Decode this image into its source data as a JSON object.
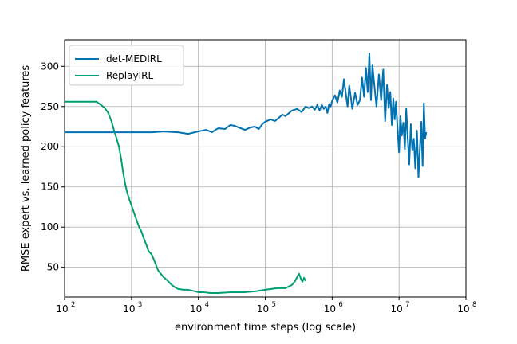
{
  "chart_data": {
    "type": "line",
    "title": "",
    "xlabel": "environment time steps (log scale)",
    "ylabel": "RMSE expert vs. learned policy features",
    "xscale": "log",
    "xlim": [
      100,
      100000000
    ],
    "ylim": [
      13,
      333
    ],
    "grid": true,
    "legend_position": "top-left",
    "xticks": [
      {
        "value": 100,
        "label": "10",
        "exp": "2"
      },
      {
        "value": 1000,
        "label": "10",
        "exp": "3"
      },
      {
        "value": 10000,
        "label": "10",
        "exp": "4"
      },
      {
        "value": 100000,
        "label": "10",
        "exp": "5"
      },
      {
        "value": 1000000,
        "label": "10",
        "exp": "6"
      },
      {
        "value": 10000000,
        "label": "10",
        "exp": "7"
      },
      {
        "value": 100000000,
        "label": "10",
        "exp": "8"
      }
    ],
    "yticks": [
      50,
      100,
      150,
      200,
      250,
      300
    ],
    "series": [
      {
        "name": "det-MEDIRL",
        "color": "#0072b2",
        "x": [
          100,
          500,
          1000,
          2000,
          3000,
          5000,
          7000,
          10000,
          13000,
          16000,
          18000,
          20000,
          25000,
          30000,
          35000,
          40000,
          50000,
          60000,
          70000,
          80000,
          90000,
          100000,
          120000,
          140000,
          160000,
          180000,
          200000,
          250000,
          300000,
          350000,
          400000,
          450000,
          500000,
          550000,
          600000,
          650000,
          700000,
          750000,
          800000,
          850000,
          900000,
          950000,
          1000000,
          1100000,
          1200000,
          1300000,
          1400000,
          1500000,
          1600000,
          1700000,
          1800000,
          1900000,
          2000000,
          2200000,
          2400000,
          2600000,
          2800000,
          3000000,
          3200000,
          3400000,
          3600000,
          3800000,
          4000000,
          4300000,
          4600000,
          5000000,
          5400000,
          5800000,
          6200000,
          6600000,
          7000000,
          7400000,
          7800000,
          8200000,
          8600000,
          9000000,
          9500000,
          10000000,
          10500000,
          11000000,
          11600000,
          12200000,
          12800000,
          13500000,
          14200000,
          15000000,
          15800000,
          16600000,
          17500000,
          18500000,
          19500000,
          20500000,
          21500000,
          22500000,
          23500000,
          24500000,
          25500000
        ],
        "y": [
          218,
          218,
          218,
          218,
          219,
          218,
          216,
          219,
          221,
          218,
          221,
          223,
          222,
          227,
          226,
          224,
          221,
          224,
          225,
          222,
          228,
          231,
          234,
          232,
          236,
          240,
          238,
          245,
          247,
          243,
          250,
          248,
          250,
          246,
          252,
          245,
          252,
          247,
          250,
          242,
          253,
          250,
          257,
          264,
          255,
          270,
          262,
          284,
          266,
          250,
          276,
          262,
          247,
          267,
          252,
          258,
          286,
          262,
          298,
          268,
          316,
          258,
          302,
          274,
          250,
          290,
          258,
          296,
          232,
          277,
          248,
          268,
          227,
          260,
          234,
          256,
          222,
          193,
          238,
          214,
          230,
          197,
          247,
          210,
          178,
          228,
          196,
          210,
          173,
          220,
          162,
          198,
          231,
          176,
          254,
          210,
          218
        ]
      },
      {
        "name": "ReplayIRL",
        "color": "#009e73",
        "x": [
          100,
          150,
          200,
          250,
          300,
          350,
          400,
          450,
          500,
          550,
          600,
          650,
          700,
          750,
          800,
          850,
          900,
          950,
          1000,
          1100,
          1200,
          1300,
          1400,
          1500,
          1700,
          1800,
          2000,
          2200,
          2500,
          3000,
          3500,
          4000,
          4500,
          5000,
          6000,
          7000,
          8000,
          9000,
          10000,
          12000,
          15000,
          20000,
          30000,
          40000,
          50000,
          70000,
          100000,
          150000,
          200000,
          250000,
          280000,
          300000,
          320000,
          340000,
          360000,
          380000,
          400000
        ],
        "y": [
          256,
          256,
          256,
          256,
          256,
          252,
          248,
          242,
          232,
          220,
          210,
          200,
          185,
          168,
          155,
          145,
          138,
          132,
          127,
          117,
          108,
          100,
          95,
          88,
          76,
          70,
          66,
          58,
          46,
          38,
          33,
          28,
          25,
          23,
          22,
          22,
          21,
          20,
          19,
          19,
          18,
          18,
          19,
          19,
          19,
          20,
          22,
          24,
          24,
          28,
          33,
          38,
          42,
          36,
          32,
          37,
          33
        ]
      }
    ]
  }
}
